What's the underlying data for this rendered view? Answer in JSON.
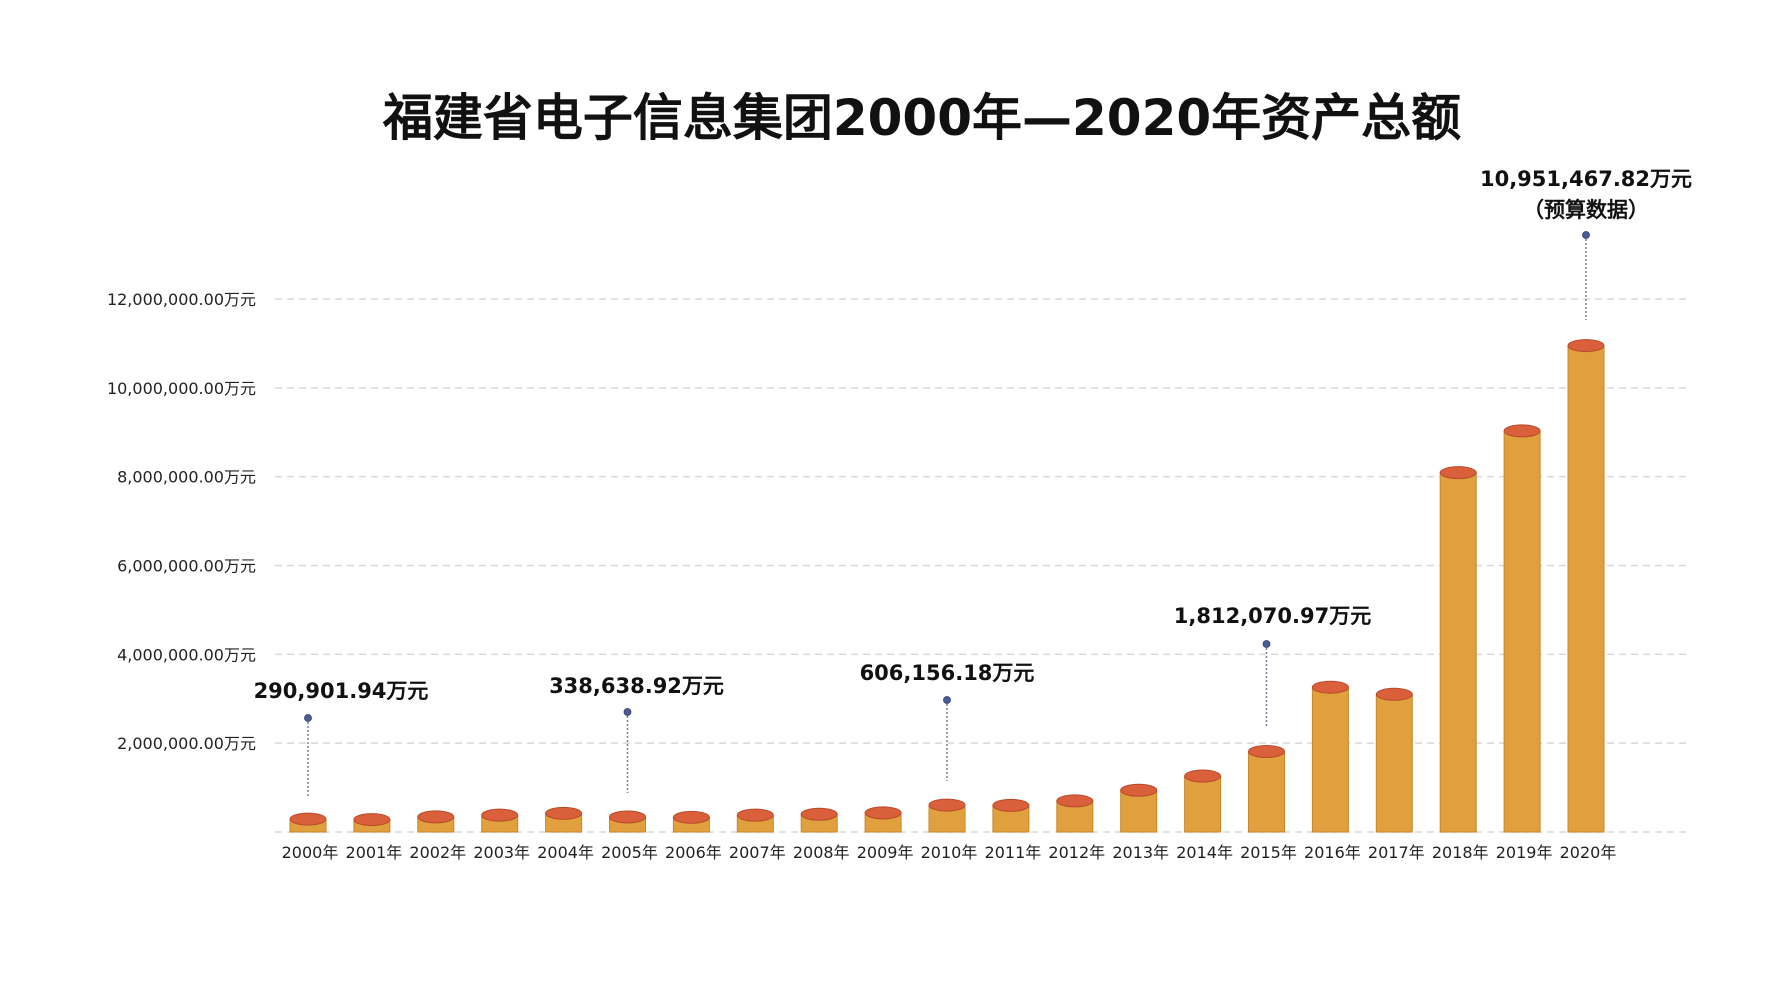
{
  "chart_data": {
    "type": "bar",
    "title": "福建省电子信息集团2000年—2020年资产总额",
    "xlabel": "",
    "ylabel": "",
    "ylim": [
      0,
      12000000
    ],
    "grid": true,
    "unit": "万元",
    "yticks": [
      {
        "value": 2000000,
        "label": "2,000,000.00万元"
      },
      {
        "value": 4000000,
        "label": "4,000,000.00万元"
      },
      {
        "value": 6000000,
        "label": "6,000,000.00万元"
      },
      {
        "value": 8000000,
        "label": "8,000,000.00万元"
      },
      {
        "value": 10000000,
        "label": "10,000,000.00万元"
      },
      {
        "value": 12000000,
        "label": "12,000,000.00万元"
      }
    ],
    "categories": [
      "2000年",
      "2001年",
      "2002年",
      "2003年",
      "2004年",
      "2005年",
      "2006年",
      "2007年",
      "2008年",
      "2009年",
      "2010年",
      "2011年",
      "2012年",
      "2013年",
      "2014年",
      "2015年",
      "2016年",
      "2017年",
      "2018年",
      "2019年",
      "2020年"
    ],
    "values": [
      290901.94,
      280000,
      340000,
      380000,
      420000,
      338638.92,
      330000,
      380000,
      400000,
      430000,
      606156.18,
      600000,
      700000,
      940000,
      1260000,
      1812070.97,
      3260000,
      3100000,
      8090000,
      9030000,
      10951467.82
    ],
    "annotations": [
      {
        "index": 0,
        "lines": [
          "290,901.94万元"
        ]
      },
      {
        "index": 5,
        "lines": [
          "338,638.92万元"
        ]
      },
      {
        "index": 10,
        "lines": [
          "606,156.18万元"
        ]
      },
      {
        "index": 15,
        "lines": [
          "1,812,070.97万元"
        ]
      },
      {
        "index": 20,
        "lines": [
          "10,951,467.82万元",
          "（预算数据）"
        ]
      }
    ],
    "colors": {
      "bar": "#E0A03E",
      "bar_edge": "#C9862C",
      "cap": "#D9603B",
      "cap_edge": "#B8492A",
      "grid": "#D8D8D8",
      "leader": "#7A8196",
      "dot": "#4A5C95"
    }
  }
}
